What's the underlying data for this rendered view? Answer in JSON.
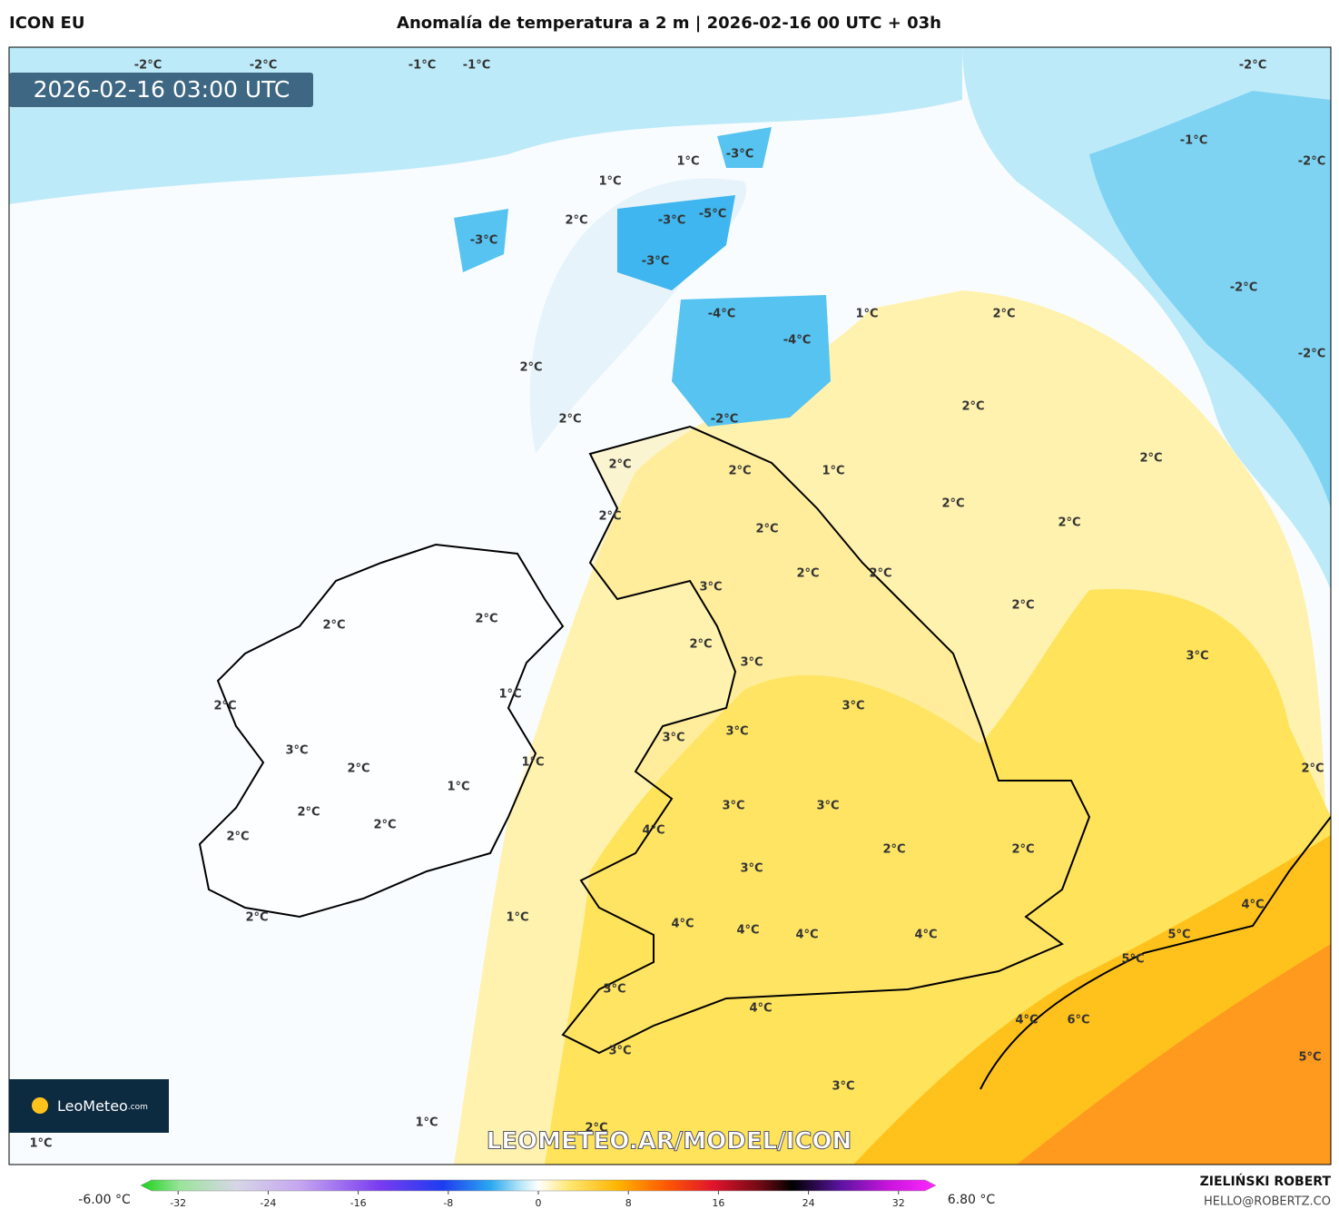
{
  "header": {
    "model": "ICON EU",
    "title": "Anomalía de temperatura a 2 m | 2026-02-16 00 UTC + 03h"
  },
  "map": {
    "timestamp": "2026-02-16 03:00 UTC",
    "watermark": "LEOMETEO.AR/MODEL/ICON",
    "logo": "LeoMeteo",
    "logo_suffix": ".com",
    "labels": [
      "-2°C",
      "-2°C",
      "-1°C",
      "-1°C",
      "-2°C",
      "-1°C",
      "-2°C",
      "1°C",
      "-3°C",
      "1°C",
      "-3°C",
      "-5°C",
      "2°C",
      "-3°C",
      "-3°C",
      "-4°C",
      "1°C",
      "2°C",
      "-4°C",
      "-2°C",
      "-2°C",
      "2°C",
      "2°C",
      "-2°C",
      "2°C",
      "2°C",
      "1°C",
      "2°C",
      "2°C",
      "2°C",
      "2°C",
      "2°C",
      "2°C",
      "2°C",
      "2°C",
      "3°C",
      "2°C",
      "2°C",
      "2°C",
      "2°C",
      "3°C",
      "3°C",
      "1°C",
      "2°C",
      "3°C",
      "3°C",
      "3°C",
      "3°C",
      "1°C",
      "2°C",
      "2°C",
      "1°C",
      "3°C",
      "3°C",
      "2°C",
      "2°C",
      "4°C",
      "2°C",
      "2°C",
      "2°C",
      "3°C",
      "4°C",
      "1°C",
      "2°C",
      "4°C",
      "4°C",
      "4°C",
      "4°C",
      "5°C",
      "5°C",
      "3°C",
      "4°C",
      "4°C",
      "6°C",
      "3°C",
      "5°C",
      "3°C",
      "1°C",
      "2°C",
      "1°C"
    ]
  },
  "colorbar": {
    "min_label": "-6.00 °C",
    "max_label": "6.80 °C",
    "lim": [
      -35,
      35
    ],
    "ticks": [
      -32,
      -24,
      -16,
      -8,
      0,
      8,
      16,
      24,
      32
    ]
  },
  "credits": {
    "author": "ZIELIŃSKI ROBERT",
    "email": "HELLO@ROBERTZ.CO"
  }
}
